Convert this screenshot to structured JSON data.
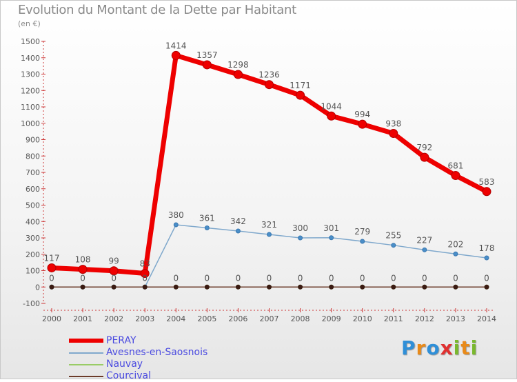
{
  "title": "Evolution du Montant de la Dette par Habitant",
  "subtitle": "(en €)",
  "chart_data": {
    "type": "line",
    "x": [
      "2000",
      "2001",
      "2002",
      "2003",
      "2004",
      "2005",
      "2006",
      "2007",
      "2008",
      "2009",
      "2010",
      "2011",
      "2012",
      "2013",
      "2014"
    ],
    "ylim": [
      -100,
      1500
    ],
    "yticks": [
      "-100",
      "0",
      "100",
      "200",
      "300",
      "400",
      "500",
      "600",
      "700",
      "800",
      "900",
      "1000",
      "1100",
      "1200",
      "1300",
      "1400",
      "1500"
    ],
    "grid": false,
    "legend": "bottom-left",
    "series": [
      {
        "name": "PERAY",
        "color": "#ee0000",
        "values": [
          117,
          108,
          99,
          83,
          1414,
          1357,
          1298,
          1236,
          1171,
          1044,
          994,
          938,
          792,
          681,
          583
        ],
        "labels": [
          "117",
          "108",
          "99",
          "83",
          "1414",
          "1357",
          "1298",
          "1236",
          "1171",
          "1044",
          "994",
          "938",
          "792",
          "681",
          "583"
        ]
      },
      {
        "name": "Avesnes-en-Saosnois",
        "color": "#7fa8cc",
        "values": [
          0,
          0,
          0,
          0,
          380,
          361,
          342,
          321,
          300,
          301,
          279,
          255,
          227,
          202,
          178
        ],
        "labels": [
          "",
          "",
          "",
          "",
          "380",
          "361",
          "342",
          "321",
          "300",
          "301",
          "279",
          "255",
          "227",
          "202",
          "178"
        ]
      },
      {
        "name": "Nauvay",
        "color": "#99cc66",
        "values": [
          0,
          0,
          0,
          0,
          0,
          0,
          0,
          0,
          0,
          0,
          0,
          0,
          0,
          0,
          0
        ],
        "labels": [
          "0",
          "0",
          "0",
          "0",
          "0",
          "0",
          "0",
          "0",
          "0",
          "0",
          "0",
          "0",
          "0",
          "0",
          "0"
        ]
      },
      {
        "name": "Courcival",
        "color": "#6b3b2a",
        "values": [
          0,
          0,
          0,
          0,
          0,
          0,
          0,
          0,
          0,
          0,
          0,
          0,
          0,
          0,
          0
        ],
        "labels": []
      }
    ]
  },
  "logo": {
    "letters": [
      "P",
      "r",
      "o",
      "x",
      "i",
      "t",
      "i"
    ],
    "colors": [
      "#2f8fd8",
      "#e88a1a",
      "#2f8fd8",
      "#e03030",
      "#7ab82e",
      "#e88a1a",
      "#7ab82e"
    ]
  }
}
